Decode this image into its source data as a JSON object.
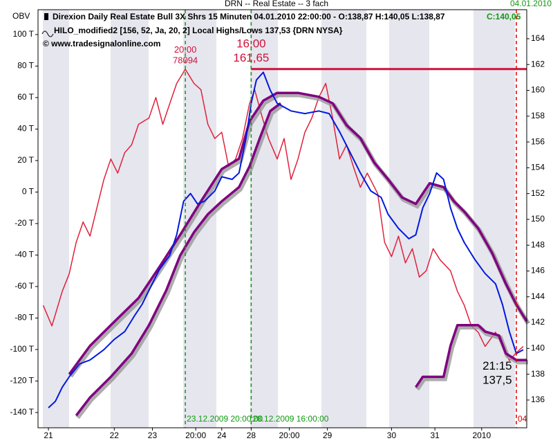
{
  "window_title": "DRN  --  Real Estate -- 3 fach",
  "window_date": "04.01.2010",
  "header": {
    "instrument": "Direxion Daily Real Estate Bull 3X Shrs 15 Minuten  04.01.2010 22:00:00  - O:138,87 H:140,05 L:138,87",
    "close": "C:140,05",
    "indicator": "HILO_modified2 [156, 52, Ja, 20, 2] Local Highs/Lows 137,53 {DRN NYSA}",
    "copyright": "© www.tradesignalonline.com"
  },
  "chart_data": {
    "type": "line",
    "y_axis_label": "OBV",
    "xlim": [
      0,
      141
    ],
    "ylim": [
      -149.7,
      115.8
    ],
    "y2lim": [
      133.85,
      166.25
    ],
    "yticks": [
      {
        "value": 100,
        "label": "100 T"
      },
      {
        "value": 80,
        "label": "80 T"
      },
      {
        "value": 60,
        "label": "60 T"
      },
      {
        "value": 40,
        "label": "40 T"
      },
      {
        "value": 20,
        "label": "20 T"
      },
      {
        "value": 0,
        "label": "0 T"
      },
      {
        "value": -20,
        "label": "-20 T"
      },
      {
        "value": -40,
        "label": "-40 T"
      },
      {
        "value": -60,
        "label": "-60 T"
      },
      {
        "value": -80,
        "label": "-80 T"
      },
      {
        "value": -100,
        "label": "-100 T"
      },
      {
        "value": -120,
        "label": "-120 T"
      },
      {
        "value": -140,
        "label": "-140 T"
      }
    ],
    "y2ticks": [
      136,
      138,
      140,
      142,
      144,
      146,
      148,
      150,
      152,
      154,
      156,
      158,
      160,
      162,
      164
    ],
    "xticks": [
      {
        "value": 3,
        "label": "21"
      },
      {
        "value": 22,
        "label": "22"
      },
      {
        "value": 33,
        "label": "23"
      },
      {
        "value": 45.5,
        "label": "20:00"
      },
      {
        "value": 53,
        "label": "24"
      },
      {
        "value": 61.5,
        "label": "28"
      },
      {
        "value": 72.5,
        "label": "20:00"
      },
      {
        "value": 83.5,
        "label": "29"
      },
      {
        "value": 102,
        "label": "30"
      },
      {
        "value": 114.5,
        "label": "31"
      },
      {
        "value": 128,
        "label": "2010"
      }
    ],
    "series": [
      {
        "color": "#e0203a",
        "axis": "y",
        "width": 1.5,
        "x": [
          1.5,
          4,
          7,
          9,
          11,
          13,
          15,
          17,
          19,
          21,
          23,
          25,
          27,
          29,
          32,
          34,
          36,
          38,
          40,
          42.5,
          45,
          47,
          49,
          51,
          53,
          55,
          57,
          59,
          61,
          62.5,
          64.5,
          66.5,
          69,
          71,
          73,
          75,
          77,
          79,
          81,
          83,
          85,
          87,
          89,
          91,
          93,
          95,
          98,
          100,
          102,
          104,
          106,
          108,
          110,
          112,
          114,
          116,
          119,
          121,
          123,
          125,
          127,
          129,
          132,
          134,
          136,
          138,
          140
        ],
        "values": [
          -72,
          -85,
          -63,
          -52,
          -32,
          -19,
          -28,
          -10,
          8,
          21,
          12,
          25,
          30,
          43,
          47,
          60,
          43,
          56,
          69,
          78,
          69,
          65,
          43,
          34,
          38,
          16,
          21,
          34,
          56,
          65,
          49,
          34,
          21,
          34,
          8,
          21,
          38,
          47,
          60,
          69,
          47,
          21,
          30,
          16,
          3,
          12,
          -1,
          -32,
          -41,
          -28,
          -45,
          -36,
          -54,
          -50,
          -36,
          -43,
          -50,
          -63,
          -72,
          -85,
          -89,
          -98,
          -89,
          -98,
          -107,
          -102,
          -98
        ]
      },
      {
        "color": "#800080",
        "axis": "y2",
        "width": 3.5,
        "shadow": true,
        "x": [
          9,
          15,
          21,
          29,
          35,
          41,
          47,
          53,
          58,
          61,
          65,
          69,
          75,
          81,
          85,
          89,
          93,
          97,
          101,
          105,
          109,
          113,
          117,
          120,
          123,
          127,
          131,
          135,
          138,
          141
        ],
        "values": [
          138.0,
          140.2,
          141.8,
          143.9,
          146.3,
          148.8,
          151.4,
          153.9,
          154.7,
          157.6,
          159.2,
          159.8,
          159.8,
          159.5,
          159.0,
          157.3,
          156.3,
          154.4,
          153.1,
          151.7,
          151.2,
          152.8,
          152.5,
          151.4,
          150.6,
          149.3,
          147.4,
          145.0,
          143.4,
          142.1
        ]
      },
      {
        "color": "#800080",
        "axis": "y2",
        "width": 3.5,
        "shadow": true,
        "x": [
          11,
          15,
          21,
          27,
          32,
          37,
          41,
          45,
          49,
          53,
          58,
          61,
          64,
          67,
          70,
          90,
          109,
          111,
          117,
          119,
          121,
          127,
          129,
          133,
          135,
          138,
          141
        ],
        "values": [
          134.8,
          136.2,
          137.8,
          139.6,
          141.8,
          144.5,
          147.2,
          149.0,
          150.4,
          151.4,
          152.5,
          154.1,
          156.3,
          158.4,
          159.0,
          null,
          137.0,
          137.8,
          137.8,
          140.2,
          141.8,
          141.8,
          141.3,
          141.0,
          139.6,
          139.1,
          139.1
        ]
      },
      {
        "color": "#0018e0",
        "axis": "y2",
        "width": 2,
        "x": [
          3,
          5,
          7,
          9,
          12,
          15,
          19,
          22,
          25,
          28,
          30,
          32,
          35,
          38,
          40,
          42,
          44,
          46,
          48,
          51,
          53,
          56,
          58,
          60,
          61.5,
          63,
          65,
          67,
          69,
          73,
          77,
          81,
          84,
          87,
          90,
          93,
          96,
          99,
          101,
          104,
          107,
          109,
          111,
          113,
          115,
          117,
          119,
          121,
          123,
          126,
          129,
          132,
          134,
          136,
          138,
          140
        ],
        "values": [
          135.4,
          135.9,
          137.0,
          137.8,
          138.8,
          139.1,
          139.9,
          140.7,
          141.3,
          142.6,
          143.4,
          144.5,
          146.1,
          147.2,
          148.8,
          151.4,
          152.0,
          151.2,
          151.4,
          152.2,
          153.3,
          153.1,
          153.6,
          156.3,
          159.0,
          160.8,
          161.4,
          160.0,
          159.0,
          158.4,
          158.2,
          158.4,
          158.2,
          156.8,
          155.2,
          153.6,
          152.2,
          151.7,
          150.4,
          149.3,
          148.5,
          148.8,
          150.9,
          152.0,
          153.6,
          153.1,
          150.9,
          149.3,
          148.2,
          146.9,
          145.8,
          145.0,
          143.4,
          141.3,
          139.6,
          139.9
        ]
      }
    ],
    "hline": {
      "value": 161.65,
      "from": 61.5,
      "color": "#d0103a"
    },
    "markers": [
      {
        "x": 42.5,
        "label": "23.12.2009 20:00:00",
        "color": "#119911"
      },
      {
        "x": 61.5,
        "label": "28.12.2009 16:00:00",
        "color": "#119911"
      },
      {
        "x": 138,
        "label": "04",
        "color": "#e00000"
      }
    ],
    "annotations": [
      {
        "time": "20:00",
        "label": "78094",
        "x": 42.5,
        "y": 78.094,
        "axis": "y",
        "color": "#d0103a",
        "size": 13
      },
      {
        "time": "16:00",
        "label": "161,65",
        "x": 61.5,
        "y": 161.65,
        "axis": "y2",
        "color": "#d0103a",
        "size": 17
      },
      {
        "time": "21:15",
        "label": "137,5",
        "x": 132.5,
        "y": 137.5,
        "axis": "y2",
        "color": "#000000",
        "size": 17
      }
    ]
  }
}
